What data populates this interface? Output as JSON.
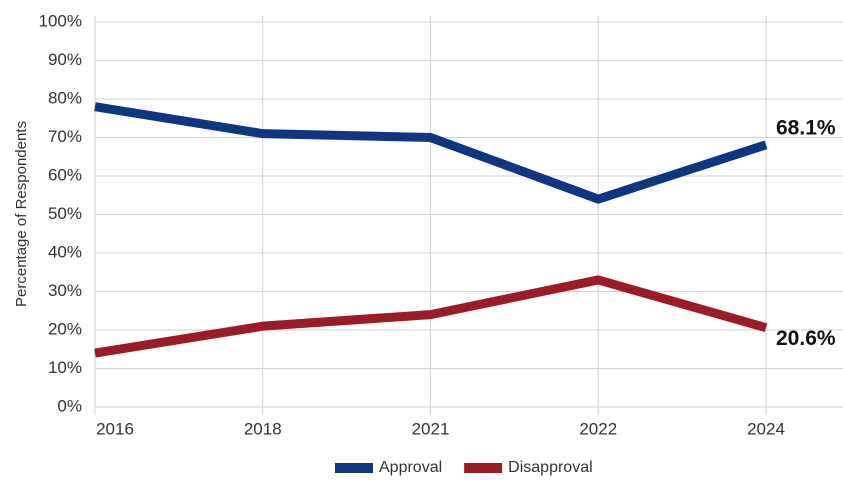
{
  "chart_data": {
    "type": "line",
    "y_label": "Percentage of Respondents",
    "categories": [
      "2016",
      "2018",
      "2021",
      "2022",
      "2024"
    ],
    "series": [
      {
        "name": "Approval",
        "color": "#0f3680",
        "values": [
          78,
          71,
          70,
          54,
          68.1
        ],
        "value_labels": [
          null,
          null,
          null,
          null,
          "68.1%"
        ]
      },
      {
        "name": "Disapproval",
        "color": "#9b1c25",
        "values": [
          14,
          21,
          24,
          33,
          20.6
        ],
        "value_labels": [
          null,
          null,
          null,
          null,
          "20.6%"
        ]
      }
    ],
    "ylim": [
      0,
      100
    ],
    "yticks": [
      {
        "value": 0,
        "label": "0%"
      },
      {
        "value": 10,
        "label": "10%"
      },
      {
        "value": 20,
        "label": "20%"
      },
      {
        "value": 30,
        "label": "30%"
      },
      {
        "value": 40,
        "label": "40%"
      },
      {
        "value": 50,
        "label": "50%"
      },
      {
        "value": 60,
        "label": "60%"
      },
      {
        "value": 70,
        "label": "70%"
      },
      {
        "value": 80,
        "label": "80%"
      },
      {
        "value": 90,
        "label": "90%"
      },
      {
        "value": 100,
        "label": "100%"
      }
    ],
    "grid": true,
    "legend": "bottom"
  }
}
